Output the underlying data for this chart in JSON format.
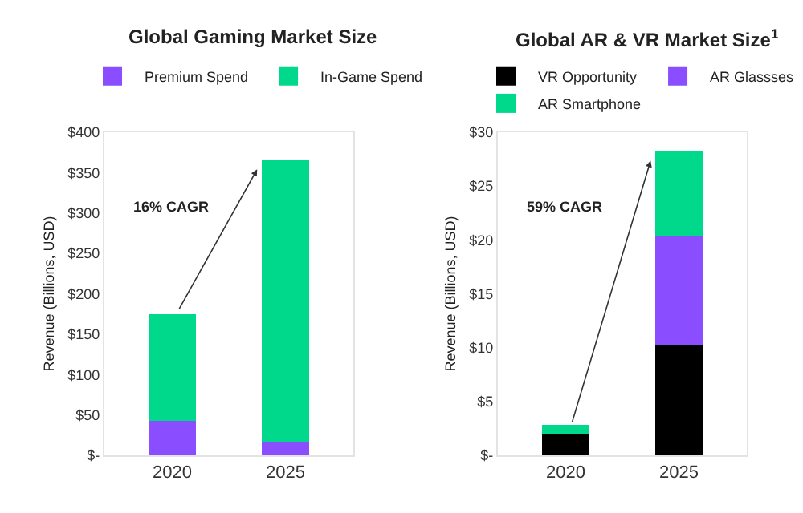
{
  "chart_data": [
    {
      "type": "bar",
      "title": "Global Gaming Market Size",
      "categories": [
        "2020",
        "2025"
      ],
      "stacked": true,
      "ylabel": "Revenue (Billions, USD)",
      "legend": "top",
      "series": [
        {
          "name": "Premium Spend",
          "color": "#8a4dff",
          "values": [
            43,
            16
          ]
        },
        {
          "name": "In-Game Spend",
          "color": "#00d98b",
          "values": [
            132,
            349
          ]
        }
      ],
      "ylim": [
        0,
        400
      ],
      "yticks": [
        {
          "value": 0,
          "label": "$-"
        },
        {
          "value": 50,
          "label": "$50"
        },
        {
          "value": 100,
          "label": "$100"
        },
        {
          "value": 150,
          "label": "$150"
        },
        {
          "value": 200,
          "label": "$200"
        },
        {
          "value": 250,
          "label": "$250"
        },
        {
          "value": 300,
          "label": "$300"
        },
        {
          "value": 350,
          "label": "$350"
        },
        {
          "value": 400,
          "label": "$400"
        }
      ],
      "annotations": [
        "16% CAGR"
      ]
    },
    {
      "type": "bar",
      "title": "Global AR & VR Market Size$^{1}$",
      "categories": [
        "2020",
        "2025"
      ],
      "stacked": true,
      "ylabel": "Revenue (Billions, USD)",
      "legend": "top",
      "series": [
        {
          "name": "VR Opportunity",
          "color": "#000000",
          "values": [
            2.0,
            10.2
          ]
        },
        {
          "name": "AR Glassses",
          "color": "#8a4dff",
          "values": [
            0,
            10.1
          ]
        },
        {
          "name": "AR Smartphone",
          "color": "#00d98b",
          "values": [
            0.8,
            7.9
          ]
        }
      ],
      "ylim": [
        0,
        30
      ],
      "yticks": [
        {
          "value": 0,
          "label": "$-"
        },
        {
          "value": 5,
          "label": "$5"
        },
        {
          "value": 10,
          "label": "$10"
        },
        {
          "value": 15,
          "label": "$15"
        },
        {
          "value": 20,
          "label": "$20"
        },
        {
          "value": 25,
          "label": "$25"
        },
        {
          "value": 30,
          "label": "$30"
        }
      ],
      "annotations": [
        "59% CAGR"
      ]
    }
  ]
}
